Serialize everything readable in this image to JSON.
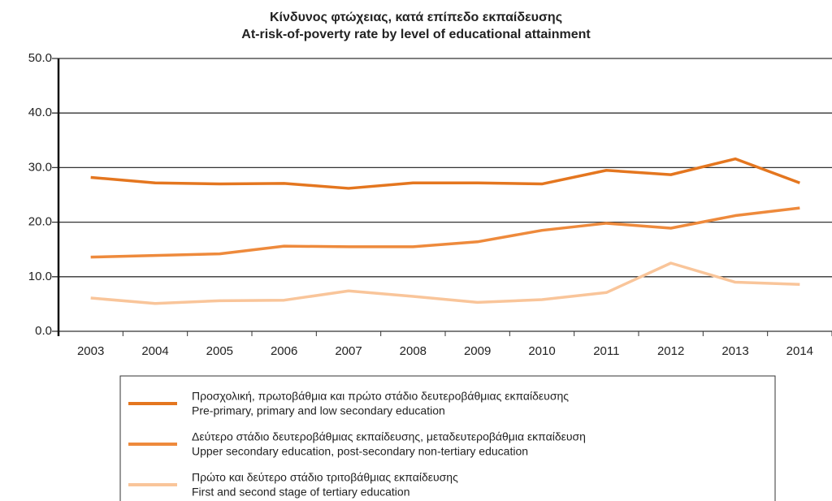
{
  "chart_data": {
    "type": "line",
    "title": "Κίνδυνος φτώχειας, κατά επίπεδο εκπαίδευσης",
    "subtitle": "At-risk-of-poverty rate by level of educational attainment",
    "categories": [
      "2003",
      "2004",
      "2005",
      "2006",
      "2007",
      "2008",
      "2009",
      "2010",
      "2011",
      "2012",
      "2013",
      "2014"
    ],
    "series": [
      {
        "name": [
          "Προσχολική, πρωτοβάθμια και πρώτο στάδιο δευτεροβάθμιας εκπαίδευσης",
          "Pre-primary, primary and low secondary education"
        ],
        "color": "#e4761f",
        "values": [
          28.2,
          27.2,
          27.0,
          27.1,
          26.2,
          27.2,
          27.2,
          27.0,
          29.5,
          28.7,
          31.6,
          27.2
        ]
      },
      {
        "name": [
          "Δεύτερο στάδιο δευτεροβάθμιας εκπαίδευσης, μεταδευτεροβάθμια εκπαίδευση",
          "Upper secondary education, post-secondary non-tertiary education"
        ],
        "color": "#ee8a3c",
        "values": [
          13.6,
          13.9,
          14.2,
          15.6,
          15.5,
          15.5,
          16.4,
          18.5,
          19.8,
          18.9,
          21.2,
          22.6
        ]
      },
      {
        "name": [
          "Πρώτο και δεύτερο στάδιο τριτοβάθμιας εκπαίδευσης",
          "First and second stage of tertiary education"
        ],
        "color": "#f9c59a",
        "values": [
          6.1,
          5.1,
          5.6,
          5.7,
          7.4,
          6.4,
          5.3,
          5.8,
          7.1,
          12.5,
          9.0,
          8.6
        ]
      }
    ],
    "ylim": [
      0,
      50
    ],
    "yticks": [
      {
        "value": 0,
        "label": "0.0"
      },
      {
        "value": 10,
        "label": "10.0"
      },
      {
        "value": 20,
        "label": "20.0"
      },
      {
        "value": 30,
        "label": "30.0"
      },
      {
        "value": 40,
        "label": "40.0"
      },
      {
        "value": 50,
        "label": "50.0"
      }
    ],
    "grid": true
  }
}
